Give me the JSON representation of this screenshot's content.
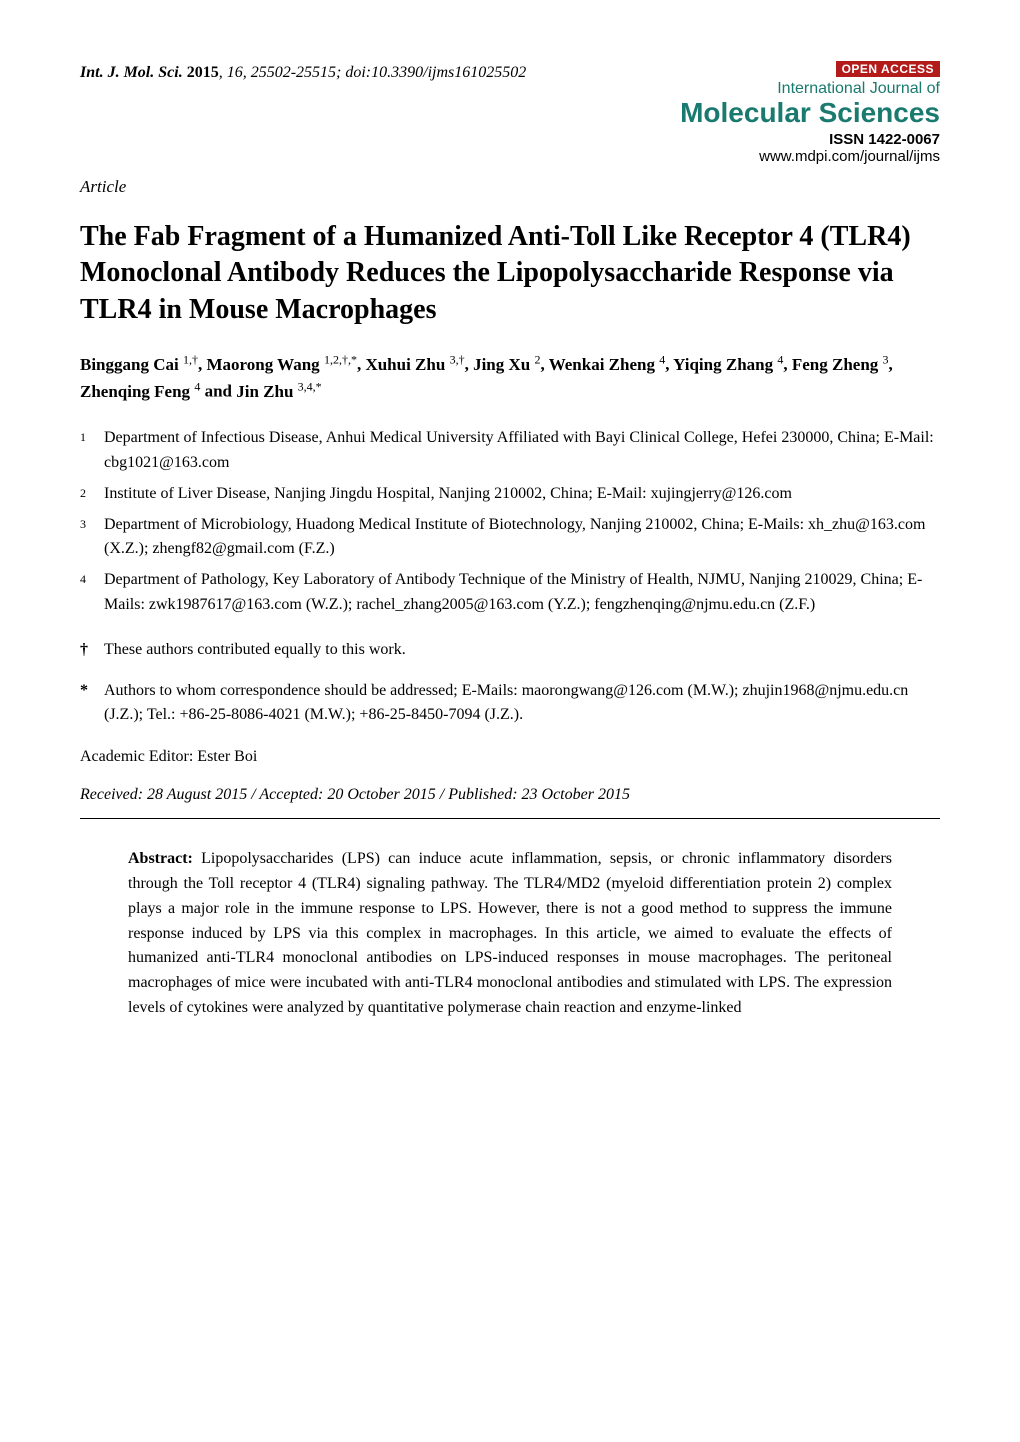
{
  "header": {
    "journal_abbrev": "Int. J. Mol. Sci.",
    "year": "2015",
    "volume": "16",
    "pages": "25502-25515",
    "doi": "doi:10.3390/ijms161025502",
    "open_access_label": "OPEN ACCESS",
    "journal_line1": "International Journal of",
    "journal_line2": "Molecular Sciences",
    "issn": "ISSN 1422-0067",
    "url": "www.mdpi.com/journal/ijms"
  },
  "article_type": "Article",
  "title": "The Fab Fragment of a Humanized Anti-Toll Like Receptor 4 (TLR4) Monoclonal Antibody Reduces the Lipopolysaccharide Response via TLR4 in Mouse Macrophages",
  "authors": [
    {
      "name": "Binggang Cai",
      "marks": "1,†"
    },
    {
      "name": "Maorong Wang",
      "marks": "1,2,†,*"
    },
    {
      "name": "Xuhui Zhu",
      "marks": "3,†"
    },
    {
      "name": "Jing Xu",
      "marks": "2"
    },
    {
      "name": "Wenkai Zheng",
      "marks": "4"
    },
    {
      "name": "Yiqing Zhang",
      "marks": "4"
    },
    {
      "name": "Feng Zheng",
      "marks": "3"
    },
    {
      "name": "Zhenqing Feng",
      "marks": "4"
    },
    {
      "name": "Jin Zhu",
      "marks": "3,4,*"
    }
  ],
  "affiliations": [
    {
      "num": "1",
      "text": "Department of Infectious Disease, Anhui Medical University Affiliated with Bayi Clinical College, Hefei 230000, China; E-Mail: cbg1021@163.com"
    },
    {
      "num": "2",
      "text": "Institute of Liver Disease, Nanjing Jingdu Hospital, Nanjing 210002, China; E-Mail: xujingjerry@126.com"
    },
    {
      "num": "3",
      "text": "Department of Microbiology, Huadong Medical Institute of Biotechnology, Nanjing 210002, China; E-Mails: xh_zhu@163.com (X.Z.); zhengf82@gmail.com (F.Z.)"
    },
    {
      "num": "4",
      "text": "Department of Pathology, Key Laboratory of Antibody Technique of the Ministry of Health, NJMU, Nanjing 210029, China; E-Mails: zwk1987617@163.com (W.Z.); rachel_zhang2005@163.com (Y.Z.); fengzhenqing@njmu.edu.cn (Z.F.)"
    }
  ],
  "notes": [
    {
      "sym": "†",
      "text": "These authors contributed equally to this work."
    },
    {
      "sym": "*",
      "text": "Authors to whom correspondence should be addressed; E-Mails: maorongwang@126.com (M.W.); zhujin1968@njmu.edu.cn (J.Z.); Tel.: +86-25-8086-4021 (M.W.); +86-25-8450-7094 (J.Z.)."
    }
  ],
  "editor": "Academic Editor: Ester Boi",
  "dates": "Received: 28 August 2015 / Accepted: 20 October 2015 / Published: 23 October 2015",
  "abstract": {
    "label": "Abstract:",
    "text": "Lipopolysaccharides (LPS) can induce acute inflammation, sepsis, or chronic inflammatory disorders through the Toll receptor 4 (TLR4) signaling pathway. The TLR4/MD2 (myeloid differentiation protein 2) complex plays a major role in the immune response to LPS. However, there is not a good method to suppress the immune response induced by LPS via this complex in macrophages. In this article, we aimed to evaluate the effects of humanized anti-TLR4 monoclonal antibodies on LPS-induced responses in mouse macrophages. The peritoneal macrophages of mice were incubated with anti-TLR4 monoclonal antibodies and stimulated with LPS. The expression levels of cytokines were analyzed by quantitative polymerase chain reaction and enzyme-linked"
  },
  "colors": {
    "open_access_bg": "#b31b1b",
    "journal_name": "#1a7a6f",
    "text": "#000000",
    "background": "#ffffff"
  },
  "fonts": {
    "body_family": "Times New Roman",
    "header_box_family": "Arial",
    "title_size_pt": 21,
    "body_size_pt": 12
  }
}
